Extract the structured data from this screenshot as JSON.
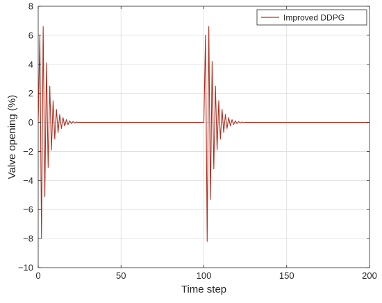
{
  "chart_data": {
    "type": "line",
    "title": "",
    "xlabel": "Time step",
    "ylabel": "Valve opening (%)",
    "xlim": [
      0,
      200
    ],
    "ylim": [
      -10,
      8
    ],
    "xticks": [
      0,
      50,
      100,
      150,
      200
    ],
    "yticks": [
      -10,
      -8,
      -6,
      -4,
      -2,
      0,
      2,
      4,
      6,
      8
    ],
    "grid": true,
    "legend_position": "top-right",
    "series": [
      {
        "name": "Improved DDPG",
        "color": "#b03020",
        "x": [
          0,
          1,
          2,
          3,
          4,
          5,
          6,
          7,
          8,
          9,
          10,
          11,
          12,
          13,
          14,
          15,
          16,
          17,
          18,
          19,
          20,
          21,
          22,
          23,
          24,
          25,
          26,
          28,
          30,
          100,
          101,
          102,
          103,
          104,
          105,
          106,
          107,
          108,
          109,
          110,
          111,
          112,
          113,
          114,
          115,
          116,
          117,
          118,
          119,
          120,
          121,
          122,
          123,
          124,
          125,
          126,
          128,
          130,
          200
        ],
        "y": [
          0,
          6.0,
          -8.0,
          6.6,
          -5.1,
          4.1,
          -3.1,
          2.5,
          -1.9,
          1.5,
          -1.15,
          0.9,
          -0.7,
          0.55,
          -0.42,
          0.33,
          -0.25,
          0.19,
          -0.15,
          0.11,
          -0.08,
          0.06,
          -0.04,
          0.03,
          -0.02,
          0.01,
          0,
          0,
          0,
          0,
          6.0,
          -8.2,
          6.6,
          -5.3,
          4.2,
          -3.2,
          2.5,
          -1.9,
          1.5,
          -1.15,
          0.9,
          -0.7,
          0.55,
          -0.42,
          0.33,
          -0.25,
          0.19,
          -0.15,
          0.11,
          -0.08,
          0.06,
          -0.04,
          0.03,
          -0.02,
          0.01,
          0,
          0,
          0,
          0
        ]
      }
    ]
  }
}
